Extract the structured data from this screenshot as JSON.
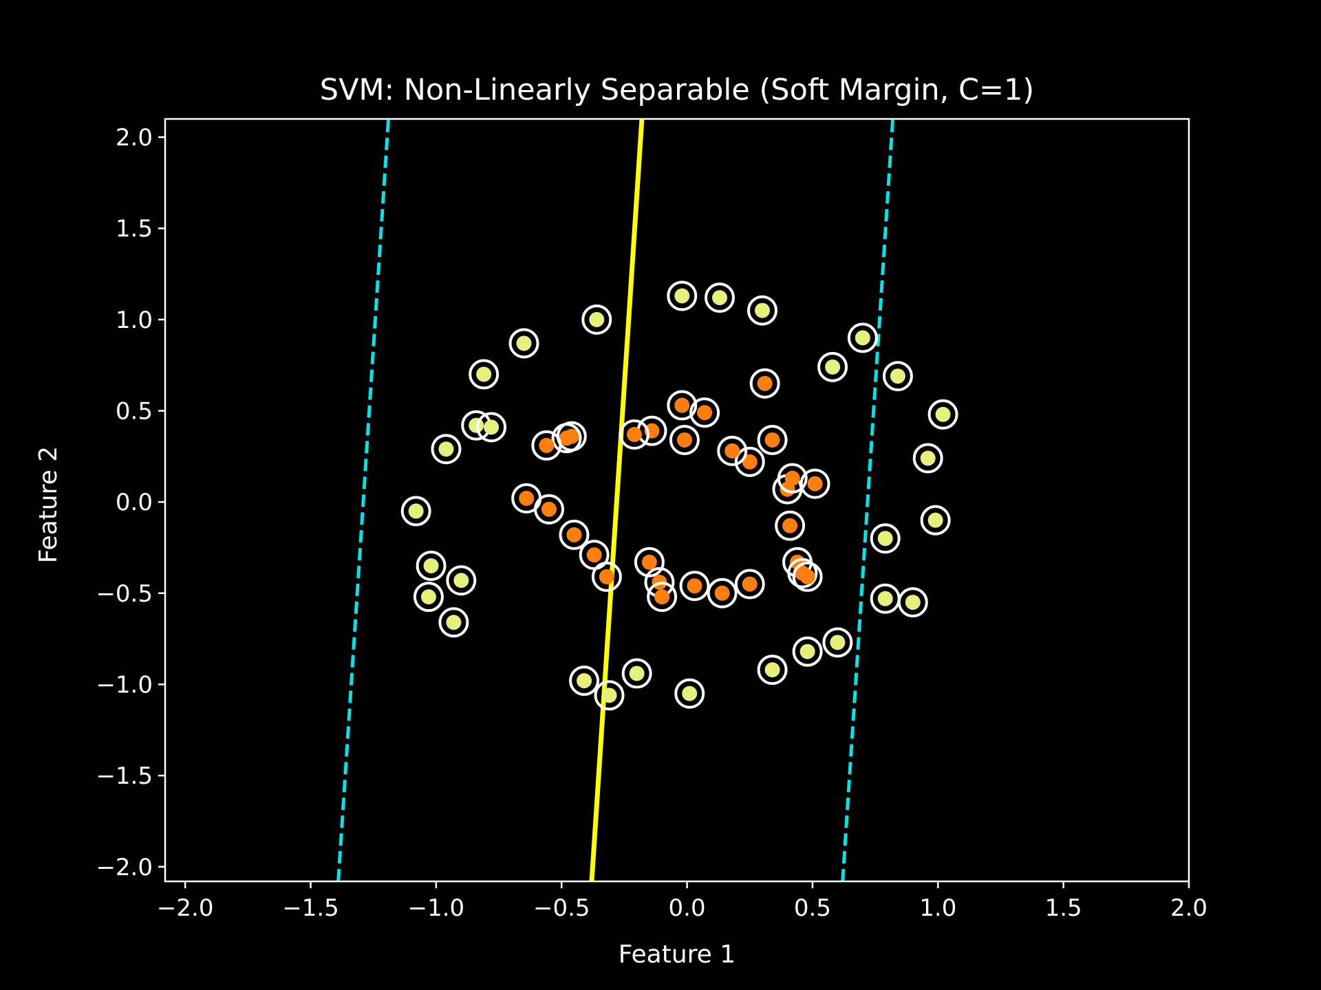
{
  "chart_data": {
    "type": "scatter",
    "title": "SVM: Non-Linearly Separable (Soft Margin, C=1)",
    "xlabel": "Feature 1",
    "ylabel": "Feature 2",
    "xlim": [
      -2.08,
      2.0
    ],
    "ylim": [
      -2.08,
      2.1
    ],
    "x_ticks": [
      -2.0,
      -1.5,
      -1.0,
      -0.5,
      0.0,
      0.5,
      1.0,
      1.5,
      2.0
    ],
    "y_ticks": [
      -2.0,
      -1.5,
      -1.0,
      -0.5,
      0.0,
      0.5,
      1.0,
      1.5,
      2.0
    ],
    "x_tick_labels": [
      "−2.0",
      "−1.5",
      "−1.0",
      "−0.5",
      "0.0",
      "0.5",
      "1.0",
      "1.5",
      "2.0"
    ],
    "y_tick_labels": [
      "−2.0",
      "−1.5",
      "−1.0",
      "−0.5",
      "0.0",
      "0.5",
      "1.0",
      "1.5",
      "2.0"
    ],
    "grid": false,
    "colors": {
      "background": "#000000",
      "axes": "#ffffff",
      "outer_class": "#e6f07a",
      "inner_class": "#ff7f0e",
      "support_ring": "#ffffff",
      "decision_boundary": "#ffff00",
      "margin": "#00e5e5"
    },
    "series": [
      {
        "class": "outer",
        "points": [
          [
            -1.08,
            -0.05
          ],
          [
            -1.02,
            -0.35
          ],
          [
            -1.03,
            -0.52
          ],
          [
            -0.93,
            -0.66
          ],
          [
            -0.9,
            -0.43
          ],
          [
            -0.96,
            0.29
          ],
          [
            -0.84,
            0.42
          ],
          [
            -0.78,
            0.41
          ],
          [
            -0.81,
            0.7
          ],
          [
            -0.65,
            0.87
          ],
          [
            -0.36,
            1.0
          ],
          [
            -0.02,
            1.13
          ],
          [
            0.13,
            1.12
          ],
          [
            0.3,
            1.05
          ],
          [
            0.58,
            0.74
          ],
          [
            0.7,
            0.9
          ],
          [
            0.84,
            0.69
          ],
          [
            1.02,
            0.48
          ],
          [
            0.96,
            0.24
          ],
          [
            0.99,
            -0.1
          ],
          [
            0.79,
            -0.2
          ],
          [
            0.79,
            -0.53
          ],
          [
            0.9,
            -0.55
          ],
          [
            0.6,
            -0.77
          ],
          [
            0.48,
            -0.82
          ],
          [
            0.34,
            -0.92
          ],
          [
            0.01,
            -1.05
          ],
          [
            -0.2,
            -0.94
          ],
          [
            -0.31,
            -1.06
          ],
          [
            -0.41,
            -0.98
          ]
        ]
      },
      {
        "class": "inner",
        "points": [
          [
            -0.64,
            0.02
          ],
          [
            -0.55,
            -0.04
          ],
          [
            -0.45,
            -0.18
          ],
          [
            -0.37,
            -0.29
          ],
          [
            -0.32,
            -0.41
          ],
          [
            -0.15,
            -0.33
          ],
          [
            -0.11,
            -0.44
          ],
          [
            -0.1,
            -0.52
          ],
          [
            0.03,
            -0.46
          ],
          [
            0.14,
            -0.5
          ],
          [
            0.25,
            -0.45
          ],
          [
            0.44,
            -0.33
          ],
          [
            0.46,
            -0.39
          ],
          [
            0.48,
            -0.41
          ],
          [
            0.41,
            -0.13
          ],
          [
            0.4,
            0.07
          ],
          [
            0.42,
            0.13
          ],
          [
            0.51,
            0.1
          ],
          [
            0.34,
            0.34
          ],
          [
            0.25,
            0.22
          ],
          [
            0.18,
            0.28
          ],
          [
            0.07,
            0.49
          ],
          [
            -0.02,
            0.53
          ],
          [
            -0.01,
            0.34
          ],
          [
            -0.14,
            0.39
          ],
          [
            -0.21,
            0.37
          ],
          [
            -0.46,
            0.36
          ],
          [
            -0.48,
            0.35
          ],
          [
            -0.56,
            0.31
          ],
          [
            0.31,
            0.65
          ]
        ]
      }
    ],
    "decision_boundary": [
      [
        -0.38,
        -2.08
      ],
      [
        -0.18,
        2.1
      ]
    ],
    "margin_lines": [
      [
        [
          -1.39,
          -2.08
        ],
        [
          -1.19,
          2.1
        ]
      ],
      [
        [
          0.62,
          -2.08
        ],
        [
          0.82,
          2.1
        ]
      ]
    ]
  }
}
